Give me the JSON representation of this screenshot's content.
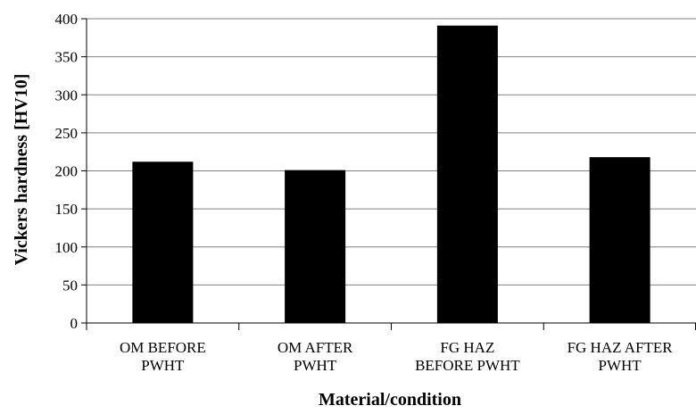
{
  "chart_data": {
    "type": "bar",
    "categories": [
      [
        "OM BEFORE",
        "PWHT"
      ],
      [
        "OM AFTER",
        "PWHT"
      ],
      [
        "FG HAZ",
        "BEFORE PWHT"
      ],
      [
        "FG HAZ AFTER",
        "PWHT"
      ]
    ],
    "values": [
      212,
      201,
      391,
      218
    ],
    "xlabel": "Material/condition",
    "ylabel": "Vickers hardness [HV10]",
    "ylim": [
      0,
      400
    ],
    "yticks": [
      0,
      50,
      100,
      150,
      200,
      250,
      300,
      350,
      400
    ],
    "grid": true,
    "bar_color": "#000000",
    "grid_color": "#808080"
  }
}
